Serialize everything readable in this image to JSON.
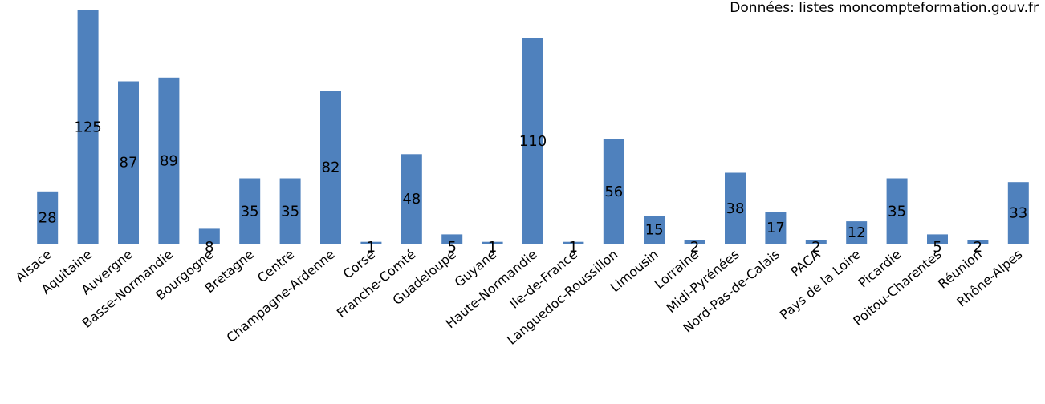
{
  "source_note": "Données: listes moncompteformation.gouv.fr",
  "chart_data": {
    "type": "bar",
    "title": "",
    "xlabel": "",
    "ylabel": "",
    "ylim": [
      0,
      125
    ],
    "grid": false,
    "bar_color": "#4f81bd",
    "categories": [
      "Alsace",
      "Aquitaine",
      "Auvergne",
      "Basse-Normandie",
      "Bourgogne",
      "Bretagne",
      "Centre",
      "Champagne-Ardenne",
      "Corse",
      "Franche-Comté",
      "Guadeloupe",
      "Guyane",
      "Haute-Normandie",
      "Ile-de-France",
      "Languedoc-Roussillon",
      "Limousin",
      "Lorraine",
      "Midi-Pyrénées",
      "Nord-Pas-de-Calais",
      "PACA",
      "Pays de la Loire",
      "Picardie",
      "Poitou-Charentes",
      "Réunion",
      "Rhône-Alpes"
    ],
    "values": [
      28,
      125,
      87,
      89,
      8,
      35,
      35,
      82,
      1,
      48,
      5,
      1,
      110,
      1,
      56,
      15,
      2,
      38,
      17,
      2,
      12,
      35,
      5,
      2,
      33
    ],
    "labels": [
      "28",
      "125",
      "87",
      "89",
      "8",
      "35",
      "35",
      "82",
      "1",
      "48",
      "5",
      "1",
      "110",
      "1",
      "56",
      "15",
      "2",
      "38",
      "17",
      "2",
      "12",
      "35",
      "5",
      "2",
      "33"
    ]
  }
}
